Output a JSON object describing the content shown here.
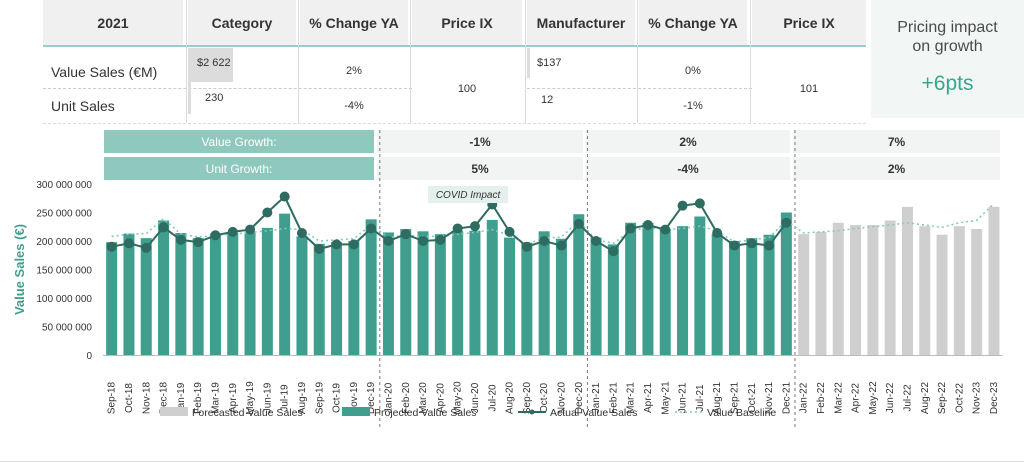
{
  "table": {
    "headers": [
      "2021",
      "Category",
      "% Change YA",
      "Price IX",
      "Manufacturer",
      "% Change YA",
      "Price IX"
    ],
    "rows": [
      {
        "label": "Value Sales (€M)",
        "category": "$2 622",
        "cat_change": "2%",
        "manufacturer": "$137",
        "man_change": "0%"
      },
      {
        "label": "Unit Sales",
        "category": "230",
        "cat_change": "-4%",
        "manufacturer": "12",
        "man_change": "-1%"
      }
    ],
    "category_price_ix": "100",
    "manufacturer_price_ix": "101"
  },
  "callout": {
    "title_line1": "Pricing impact",
    "title_line2": "on growth",
    "value": "+6pts"
  },
  "growth_bands": {
    "value_label": "Value Growth:",
    "unit_label": "Unit  Growth:",
    "value": [
      "-1%",
      "2%",
      "7%"
    ],
    "unit": [
      "5%",
      "-4%",
      "2%"
    ]
  },
  "annotation": "COVID Impact",
  "colors": {
    "teal": "#3f9e8d",
    "teal_band": "#8fc9bd",
    "grey": "#cfcfcf",
    "dark_line": "#2e6b60",
    "baseline": "#86cbb8"
  },
  "chart_data": {
    "type": "bar",
    "ylabel": "Value Sales (€)",
    "ylim": [
      0,
      300000000
    ],
    "yticks": [
      "0",
      "50 000 000",
      "100 000 000",
      "150 000 000",
      "200 000 000",
      "250 000 000",
      "300 000 000"
    ],
    "categories": [
      "Sep-18",
      "Oct-18",
      "Nov-18",
      "Dec-18",
      "Jan-19",
      "Feb-19",
      "Mar-19",
      "Apr-19",
      "May-19",
      "Jun-19",
      "Jul-19",
      "Aug-19",
      "Sep-19",
      "Oct-19",
      "Nov-19",
      "Dec-19",
      "Jan-20",
      "Feb-20",
      "Mar-20",
      "Apr-20",
      "May-20",
      "Jun-20",
      "Jul-20",
      "Aug-20",
      "Sep-20",
      "Oct-20",
      "Nov-20",
      "Dec-20",
      "Jan-21",
      "Feb-21",
      "Mar-21",
      "Apr-21",
      "May-21",
      "Jun-21",
      "Jul-21",
      "Aug-21",
      "Sep-21",
      "Oct-21",
      "Nov-21",
      "Dec-21",
      "Jan-22",
      "Feb-22",
      "Mar-22",
      "Apr-22",
      "May-22",
      "Jun-22",
      "Jul-22",
      "Aug-22",
      "Sep-22",
      "Oct-22",
      "Nov-23",
      "Dec-23"
    ],
    "series": [
      {
        "name": "Forecasted Value Sales",
        "values": [
          null,
          null,
          null,
          null,
          null,
          null,
          null,
          null,
          null,
          null,
          null,
          null,
          null,
          null,
          null,
          null,
          null,
          null,
          null,
          null,
          null,
          null,
          null,
          null,
          null,
          null,
          null,
          null,
          null,
          null,
          null,
          null,
          null,
          null,
          null,
          null,
          null,
          null,
          null,
          null,
          212000000,
          216000000,
          232000000,
          228000000,
          228000000,
          236000000,
          260000000,
          226000000,
          211000000,
          226000000,
          221000000,
          260000000
        ]
      },
      {
        "name": "Projected Value Sales",
        "values": [
          198000000,
          213000000,
          205000000,
          236000000,
          214000000,
          205000000,
          213000000,
          214000000,
          215000000,
          223000000,
          248000000,
          208000000,
          195000000,
          198000000,
          200000000,
          238000000,
          215000000,
          221000000,
          217000000,
          212000000,
          218000000,
          218000000,
          237000000,
          206000000,
          197000000,
          217000000,
          204000000,
          247000000,
          206000000,
          194000000,
          232000000,
          232000000,
          222000000,
          226000000,
          243000000,
          212000000,
          200000000,
          205000000,
          211000000,
          250000000,
          null,
          null,
          null,
          null,
          null,
          null,
          null,
          null,
          null,
          null,
          null,
          null
        ]
      },
      {
        "name": "Actual Value Sales",
        "values": [
          190000000,
          196000000,
          188000000,
          224000000,
          202000000,
          198000000,
          210000000,
          216000000,
          220000000,
          250000000,
          278000000,
          214000000,
          186000000,
          194000000,
          194000000,
          222000000,
          200000000,
          212000000,
          200000000,
          202000000,
          222000000,
          226000000,
          264000000,
          216000000,
          190000000,
          200000000,
          192000000,
          230000000,
          200000000,
          182000000,
          222000000,
          228000000,
          220000000,
          262000000,
          266000000,
          214000000,
          192000000,
          196000000,
          192000000,
          232000000,
          null,
          null,
          null,
          null,
          null,
          null,
          null,
          null,
          null,
          null,
          null,
          null
        ]
      },
      {
        "name": "Value Baseline",
        "values": [
          208000000,
          212000000,
          213000000,
          239000000,
          212000000,
          207000000,
          210000000,
          212000000,
          215000000,
          218000000,
          222000000,
          220000000,
          200000000,
          202000000,
          204000000,
          228000000,
          206000000,
          210000000,
          208000000,
          208000000,
          212000000,
          215000000,
          220000000,
          210000000,
          195000000,
          205000000,
          207000000,
          235000000,
          202000000,
          196000000,
          218000000,
          224000000,
          220000000,
          222000000,
          226000000,
          218000000,
          198000000,
          202000000,
          206000000,
          236000000,
          214000000,
          216000000,
          218000000,
          222000000,
          225000000,
          228000000,
          232000000,
          228000000,
          224000000,
          232000000,
          236000000,
          266000000
        ]
      }
    ],
    "legend_position": "bottom"
  }
}
